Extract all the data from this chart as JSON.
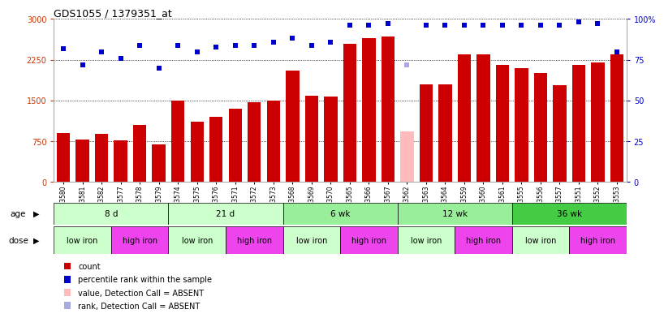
{
  "title": "GDS1055 / 1379351_at",
  "samples": [
    "GSM33580",
    "GSM33581",
    "GSM33582",
    "GSM33577",
    "GSM33578",
    "GSM33579",
    "GSM33574",
    "GSM33575",
    "GSM33576",
    "GSM33571",
    "GSM33572",
    "GSM33573",
    "GSM33568",
    "GSM33569",
    "GSM33570",
    "GSM33565",
    "GSM33566",
    "GSM33567",
    "GSM33562",
    "GSM33563",
    "GSM33564",
    "GSM33559",
    "GSM33560",
    "GSM33561",
    "GSM33555",
    "GSM33556",
    "GSM33557",
    "GSM33551",
    "GSM33552",
    "GSM33553"
  ],
  "bar_values": [
    900,
    780,
    880,
    760,
    1050,
    680,
    1500,
    1100,
    1200,
    1350,
    1470,
    1500,
    2050,
    1580,
    1570,
    2550,
    2650,
    2680,
    920,
    1800,
    1800,
    2350,
    2350,
    2150,
    2100,
    2000,
    1780,
    2150,
    2200,
    2350
  ],
  "dot_values": [
    82,
    72,
    80,
    76,
    84,
    70,
    84,
    80,
    83,
    84,
    84,
    86,
    88,
    84,
    86,
    96,
    96,
    97,
    72,
    96,
    96,
    96,
    96,
    96,
    96,
    96,
    96,
    98,
    97,
    80
  ],
  "absent_bar_idx": [
    18
  ],
  "absent_dot_idx": [
    18
  ],
  "age_groups": [
    {
      "label": "8 d",
      "start": 0,
      "end": 6,
      "color": "#ccffcc"
    },
    {
      "label": "21 d",
      "start": 6,
      "end": 12,
      "color": "#ccffcc"
    },
    {
      "label": "6 wk",
      "start": 12,
      "end": 18,
      "color": "#99ee99"
    },
    {
      "label": "12 wk",
      "start": 18,
      "end": 24,
      "color": "#99ee99"
    },
    {
      "label": "36 wk",
      "start": 24,
      "end": 30,
      "color": "#44cc44"
    }
  ],
  "dose_groups": [
    {
      "label": "low iron",
      "start": 0,
      "end": 3,
      "color": "#ccffcc"
    },
    {
      "label": "high iron",
      "start": 3,
      "end": 6,
      "color": "#ee44ee"
    },
    {
      "label": "low iron",
      "start": 6,
      "end": 9,
      "color": "#ccffcc"
    },
    {
      "label": "high iron",
      "start": 9,
      "end": 12,
      "color": "#ee44ee"
    },
    {
      "label": "low iron",
      "start": 12,
      "end": 15,
      "color": "#ccffcc"
    },
    {
      "label": "high iron",
      "start": 15,
      "end": 18,
      "color": "#ee44ee"
    },
    {
      "label": "low iron",
      "start": 18,
      "end": 21,
      "color": "#ccffcc"
    },
    {
      "label": "high iron",
      "start": 21,
      "end": 24,
      "color": "#ee44ee"
    },
    {
      "label": "low iron",
      "start": 24,
      "end": 27,
      "color": "#ccffcc"
    },
    {
      "label": "high iron",
      "start": 27,
      "end": 30,
      "color": "#ee44ee"
    }
  ],
  "ylim_left": [
    0,
    3000
  ],
  "ylim_right": [
    0,
    100
  ],
  "yticks_left": [
    0,
    750,
    1500,
    2250,
    3000
  ],
  "yticks_right": [
    0,
    25,
    50,
    75,
    100
  ],
  "bar_color_normal": "#cc0000",
  "bar_color_absent": "#ffbbbb",
  "dot_color_normal": "#0000cc",
  "dot_color_absent": "#aaaadd",
  "legend_items": [
    {
      "color": "#cc0000",
      "label": "count"
    },
    {
      "color": "#0000cc",
      "label": "percentile rank within the sample"
    },
    {
      "color": "#ffbbbb",
      "label": "value, Detection Call = ABSENT"
    },
    {
      "color": "#aaaadd",
      "label": "rank, Detection Call = ABSENT"
    }
  ]
}
